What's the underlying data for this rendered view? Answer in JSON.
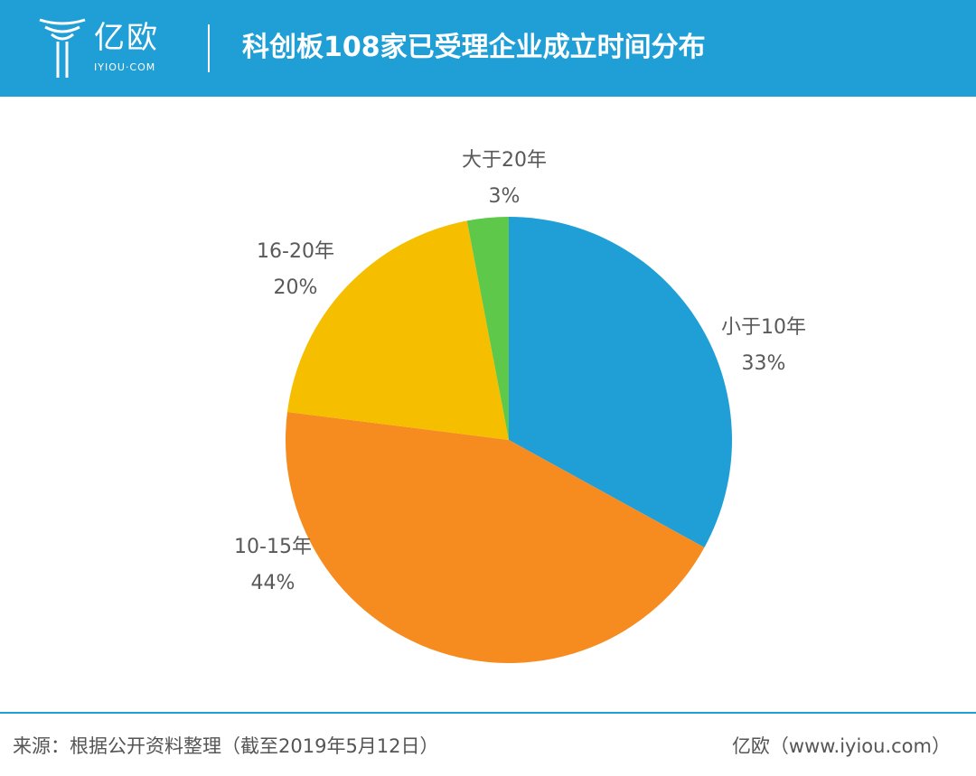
{
  "header": {
    "logo_text": "亿欧",
    "logo_sub": "IYIOU·COM",
    "title": "科创板108家已受理企业成立时间分布"
  },
  "chart_data": {
    "type": "pie",
    "title": "科创板108家已受理企业成立时间分布",
    "slices": [
      {
        "label": "小于10年",
        "value": 33,
        "pct_label": "33%",
        "color": "#1f9fd6"
      },
      {
        "label": "10-15年",
        "value": 44,
        "pct_label": "44%",
        "color": "#f68b1f"
      },
      {
        "label": "16-20年",
        "value": 20,
        "pct_label": "20%",
        "color": "#f5bf00"
      },
      {
        "label": "大于20年",
        "value": 3,
        "pct_label": "3%",
        "color": "#5ec84b"
      }
    ],
    "start": "12 o'clock",
    "direction": "clockwise"
  },
  "footer": {
    "source": "来源：根据公开资料整理（截至2019年5月12日）",
    "brand": "亿欧（www.iyiou.com）"
  }
}
